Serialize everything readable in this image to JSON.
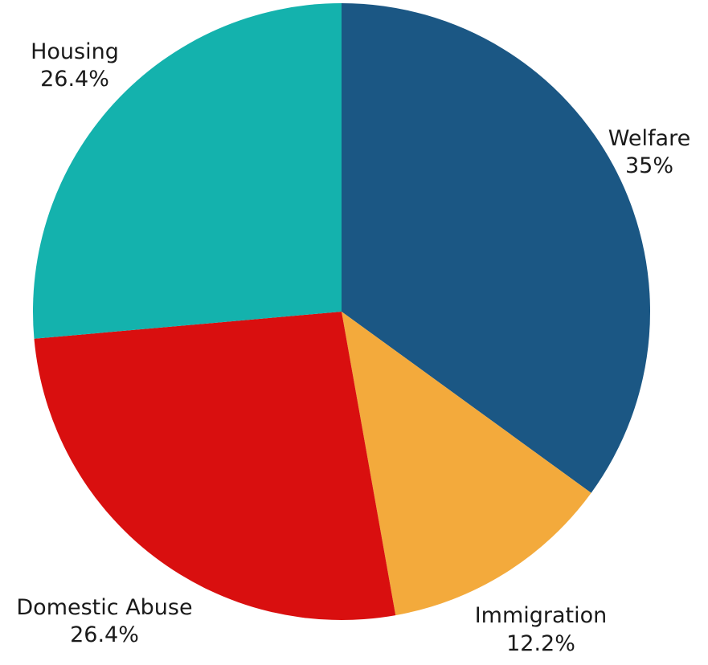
{
  "chart_data": {
    "type": "pie",
    "title": "",
    "slices": [
      {
        "label": "Welfare",
        "value_label": "35%",
        "value": 35.0,
        "color": "#1b5784"
      },
      {
        "label": "Immigration",
        "value_label": "12.2%",
        "value": 12.2,
        "color": "#f3aa3c"
      },
      {
        "label": "Domestic Abuse",
        "value_label": "26.4%",
        "value": 26.4,
        "color": "#d90f0f"
      },
      {
        "label": "Housing",
        "value_label": "26.4%",
        "value": 26.4,
        "color": "#14b2ad"
      }
    ],
    "start_angle": "12 o'clock",
    "direction": "clockwise",
    "legend": "none",
    "labels": "outside"
  }
}
